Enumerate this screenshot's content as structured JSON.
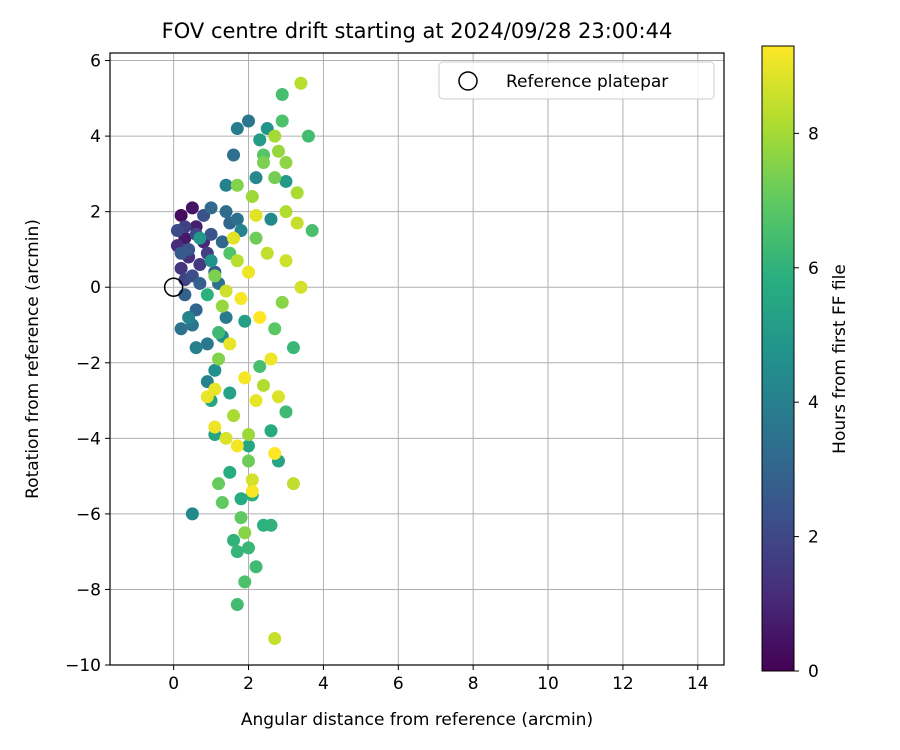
{
  "chart_data": {
    "type": "scatter",
    "title": "FOV centre drift starting at 2024/09/28 23:00:44",
    "xlabel": "Angular distance from reference (arcmin)",
    "ylabel": "Rotation from reference (arcmin)",
    "xlim": [
      -1.7,
      14.7
    ],
    "ylim": [
      -10,
      6.2
    ],
    "xticks": [
      0,
      2,
      4,
      6,
      8,
      10,
      12,
      14
    ],
    "yticks": [
      -10,
      -8,
      -6,
      -4,
      -2,
      0,
      2,
      4,
      6
    ],
    "grid": true,
    "legend": {
      "location": "upper right",
      "entries": [
        "Reference platepar"
      ]
    },
    "reference_point": {
      "x": 0,
      "y": 0,
      "label": "Reference platepar"
    },
    "colorbar": {
      "label": "Hours from first FF file",
      "colormap": "viridis",
      "range": [
        0,
        9.3
      ],
      "ticks": [
        0,
        2,
        4,
        6,
        8
      ]
    },
    "points": [
      {
        "x": 0.2,
        "y": 1.9,
        "t": 0.3
      },
      {
        "x": 0.5,
        "y": 2.1,
        "t": 0.5
      },
      {
        "x": 0.6,
        "y": 1.6,
        "t": 0.8
      },
      {
        "x": 0.3,
        "y": 1.3,
        "t": 0.6
      },
      {
        "x": 0.8,
        "y": 1.2,
        "t": 1.0
      },
      {
        "x": 0.1,
        "y": 1.1,
        "t": 1.2
      },
      {
        "x": 0.4,
        "y": 0.8,
        "t": 1.3
      },
      {
        "x": 0.7,
        "y": 0.6,
        "t": 1.5
      },
      {
        "x": 0.2,
        "y": 0.5,
        "t": 1.4
      },
      {
        "x": 0.9,
        "y": 0.9,
        "t": 1.7
      },
      {
        "x": 0.3,
        "y": 1.6,
        "t": 1.8
      },
      {
        "x": 0.6,
        "y": 1.4,
        "t": 2.0
      },
      {
        "x": 0.1,
        "y": 1.5,
        "t": 2.1
      },
      {
        "x": 0.5,
        "y": 0.3,
        "t": 2.2
      },
      {
        "x": 0.8,
        "y": 1.9,
        "t": 2.3
      },
      {
        "x": 1.0,
        "y": 1.4,
        "t": 2.4
      },
      {
        "x": 0.4,
        "y": 1.0,
        "t": 2.5
      },
      {
        "x": 0.2,
        "y": 0.9,
        "t": 2.6
      },
      {
        "x": 1.1,
        "y": 0.4,
        "t": 2.7
      },
      {
        "x": 0.7,
        "y": 0.1,
        "t": 2.8
      },
      {
        "x": 0.3,
        "y": -0.2,
        "t": 2.9
      },
      {
        "x": 0.6,
        "y": -0.6,
        "t": 3.0
      },
      {
        "x": 1.3,
        "y": 1.2,
        "t": 3.1
      },
      {
        "x": 1.0,
        "y": 2.1,
        "t": 3.2
      },
      {
        "x": 1.4,
        "y": 2.0,
        "t": 3.3
      },
      {
        "x": 1.7,
        "y": 1.8,
        "t": 3.4
      },
      {
        "x": 1.2,
        "y": 0.1,
        "t": 3.5
      },
      {
        "x": 0.5,
        "y": -1.0,
        "t": 3.6
      },
      {
        "x": 0.2,
        "y": -1.1,
        "t": 3.5
      },
      {
        "x": 0.9,
        "y": -1.5,
        "t": 3.7
      },
      {
        "x": 1.4,
        "y": -0.8,
        "t": 3.8
      },
      {
        "x": 1.6,
        "y": 3.5,
        "t": 3.4
      },
      {
        "x": 2.0,
        "y": 4.4,
        "t": 3.6
      },
      {
        "x": 1.7,
        "y": 4.2,
        "t": 3.9
      },
      {
        "x": 1.4,
        "y": 2.7,
        "t": 4.0
      },
      {
        "x": 0.6,
        "y": -1.6,
        "t": 4.0
      },
      {
        "x": 0.9,
        "y": -2.5,
        "t": 4.1
      },
      {
        "x": 1.8,
        "y": 1.5,
        "t": 4.2
      },
      {
        "x": 2.2,
        "y": 2.9,
        "t": 4.3
      },
      {
        "x": 2.6,
        "y": 1.8,
        "t": 4.4
      },
      {
        "x": 1.3,
        "y": -1.3,
        "t": 4.5
      },
      {
        "x": 1.1,
        "y": -2.2,
        "t": 4.6
      },
      {
        "x": 0.5,
        "y": -6.0,
        "t": 4.4
      },
      {
        "x": 2.5,
        "y": 4.2,
        "t": 4.8
      },
      {
        "x": 3.0,
        "y": 2.8,
        "t": 5.0
      },
      {
        "x": 2.3,
        "y": 3.9,
        "t": 5.1
      },
      {
        "x": 1.9,
        "y": -0.9,
        "t": 5.2
      },
      {
        "x": 1.5,
        "y": -2.8,
        "t": 5.3
      },
      {
        "x": 1.1,
        "y": -3.9,
        "t": 5.4
      },
      {
        "x": 1.0,
        "y": -3.0,
        "t": 5.4
      },
      {
        "x": 2.0,
        "y": -4.2,
        "t": 5.5
      },
      {
        "x": 2.6,
        "y": -3.8,
        "t": 5.6
      },
      {
        "x": 2.8,
        "y": -4.6,
        "t": 5.4
      },
      {
        "x": 1.5,
        "y": -4.9,
        "t": 5.7
      },
      {
        "x": 1.8,
        "y": -5.6,
        "t": 5.7
      },
      {
        "x": 2.1,
        "y": -5.5,
        "t": 5.8
      },
      {
        "x": 2.4,
        "y": -6.3,
        "t": 5.9
      },
      {
        "x": 2.6,
        "y": -6.3,
        "t": 6.0
      },
      {
        "x": 1.6,
        "y": -6.7,
        "t": 6.0
      },
      {
        "x": 1.7,
        "y": -7.0,
        "t": 6.1
      },
      {
        "x": 2.0,
        "y": -6.9,
        "t": 6.2
      },
      {
        "x": 2.2,
        "y": -7.4,
        "t": 6.3
      },
      {
        "x": 1.7,
        "y": -8.4,
        "t": 6.4
      },
      {
        "x": 1.9,
        "y": -7.8,
        "t": 6.6
      },
      {
        "x": 3.2,
        "y": -1.6,
        "t": 6.2
      },
      {
        "x": 3.0,
        "y": -3.3,
        "t": 6.3
      },
      {
        "x": 3.6,
        "y": 4.0,
        "t": 6.4
      },
      {
        "x": 3.7,
        "y": 1.5,
        "t": 6.5
      },
      {
        "x": 2.9,
        "y": 5.1,
        "t": 6.5
      },
      {
        "x": 2.9,
        "y": 4.4,
        "t": 6.6
      },
      {
        "x": 2.4,
        "y": 3.5,
        "t": 6.8
      },
      {
        "x": 1.3,
        "y": -5.7,
        "t": 7.0
      },
      {
        "x": 1.8,
        "y": -6.1,
        "t": 7.0
      },
      {
        "x": 1.2,
        "y": -5.2,
        "t": 7.1
      },
      {
        "x": 2.0,
        "y": -4.6,
        "t": 7.2
      },
      {
        "x": 2.7,
        "y": 2.9,
        "t": 7.3
      },
      {
        "x": 2.4,
        "y": 3.3,
        "t": 7.4
      },
      {
        "x": 1.7,
        "y": 2.7,
        "t": 7.5
      },
      {
        "x": 1.2,
        "y": -1.9,
        "t": 7.5
      },
      {
        "x": 1.9,
        "y": -6.5,
        "t": 7.6
      },
      {
        "x": 3.0,
        "y": 3.3,
        "t": 7.7
      },
      {
        "x": 2.8,
        "y": 3.6,
        "t": 7.8
      },
      {
        "x": 2.1,
        "y": 2.4,
        "t": 7.9
      },
      {
        "x": 2.7,
        "y": 4.0,
        "t": 8.0
      },
      {
        "x": 3.3,
        "y": 2.5,
        "t": 8.1
      },
      {
        "x": 3.0,
        "y": 2.0,
        "t": 8.2
      },
      {
        "x": 3.4,
        "y": 5.4,
        "t": 8.3
      },
      {
        "x": 3.2,
        "y": -5.2,
        "t": 8.4
      },
      {
        "x": 2.7,
        "y": -9.3,
        "t": 8.5
      },
      {
        "x": 3.3,
        "y": 1.7,
        "t": 8.5
      },
      {
        "x": 3.0,
        "y": 0.7,
        "t": 8.6
      },
      {
        "x": 3.4,
        "y": 0.0,
        "t": 8.7
      },
      {
        "x": 2.1,
        "y": -5.1,
        "t": 8.7
      },
      {
        "x": 1.4,
        "y": -4.0,
        "t": 8.8
      },
      {
        "x": 2.8,
        "y": -2.9,
        "t": 8.8
      },
      {
        "x": 2.2,
        "y": 1.9,
        "t": 8.9
      },
      {
        "x": 1.6,
        "y": 1.3,
        "t": 8.9
      },
      {
        "x": 1.1,
        "y": -2.7,
        "t": 9.0
      },
      {
        "x": 0.9,
        "y": -2.9,
        "t": 9.0
      },
      {
        "x": 1.1,
        "y": -3.7,
        "t": 9.1
      },
      {
        "x": 2.1,
        "y": -5.4,
        "t": 9.2
      },
      {
        "x": 1.7,
        "y": -4.2,
        "t": 9.2
      },
      {
        "x": 2.7,
        "y": -4.4,
        "t": 9.3
      },
      {
        "x": 2.0,
        "y": 0.4,
        "t": 9.1
      },
      {
        "x": 1.8,
        "y": -0.3,
        "t": 9.2
      },
      {
        "x": 2.3,
        "y": -0.8,
        "t": 9.3
      },
      {
        "x": 1.5,
        "y": -1.5,
        "t": 9.0
      },
      {
        "x": 2.6,
        "y": -1.9,
        "t": 9.1
      },
      {
        "x": 1.9,
        "y": -2.4,
        "t": 9.2
      },
      {
        "x": 2.2,
        "y": -3.0,
        "t": 9.0
      },
      {
        "x": 1.4,
        "y": -0.1,
        "t": 8.6
      },
      {
        "x": 2.5,
        "y": 0.9,
        "t": 8.4
      },
      {
        "x": 1.7,
        "y": 0.7,
        "t": 8.3
      },
      {
        "x": 2.4,
        "y": -2.6,
        "t": 8.2
      },
      {
        "x": 1.6,
        "y": -3.4,
        "t": 8.1
      },
      {
        "x": 2.0,
        "y": -3.9,
        "t": 7.9
      },
      {
        "x": 1.3,
        "y": -0.5,
        "t": 7.8
      },
      {
        "x": 2.9,
        "y": -0.4,
        "t": 7.6
      },
      {
        "x": 1.1,
        "y": 0.3,
        "t": 7.4
      },
      {
        "x": 2.2,
        "y": 1.3,
        "t": 7.2
      },
      {
        "x": 2.7,
        "y": -1.1,
        "t": 6.9
      },
      {
        "x": 1.5,
        "y": 0.9,
        "t": 6.7
      },
      {
        "x": 2.3,
        "y": -2.1,
        "t": 6.5
      },
      {
        "x": 1.2,
        "y": -1.2,
        "t": 6.3
      },
      {
        "x": 0.9,
        "y": -0.2,
        "t": 5.9
      },
      {
        "x": 0.7,
        "y": 1.3,
        "t": 4.9
      },
      {
        "x": 1.0,
        "y": 0.7,
        "t": 4.7
      },
      {
        "x": 0.4,
        "y": -0.8,
        "t": 4.2
      },
      {
        "x": 1.5,
        "y": 1.7,
        "t": 3.0
      },
      {
        "x": 0.3,
        "y": 0.2,
        "t": 1.9
      }
    ]
  }
}
